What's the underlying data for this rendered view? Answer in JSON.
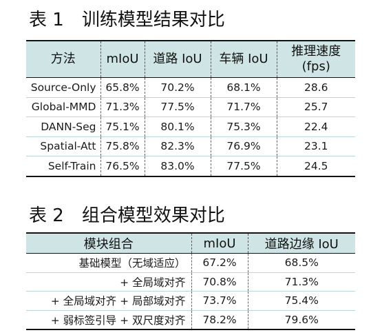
{
  "table1": {
    "title_num": "表 1",
    "title_text": "训练模型结果对比",
    "headers": [
      "方法",
      "mIoU",
      "道路 IoU",
      "车辆 IoU",
      "推理速度",
      "(fps)"
    ],
    "rows": [
      [
        "Source-Only",
        "65.8%",
        "70.2%",
        "68.1%",
        "28.6"
      ],
      [
        "Global-MMD",
        "71.3%",
        "77.5%",
        "71.7%",
        "25.7"
      ],
      [
        "DANN-Seg",
        "75.1%",
        "80.1%",
        "75.3%",
        "22.4"
      ],
      [
        "Spatial-Att",
        "75.8%",
        "82.3%",
        "76.9%",
        "23.1"
      ],
      [
        "Self-Train",
        "76.5%",
        "83.0%",
        "77.5%",
        "24.5"
      ]
    ]
  },
  "table2": {
    "title_num": "表 2",
    "title_text": "组合模型效果对比",
    "headers": [
      "模块组合",
      "mIoU",
      "道路边缘 IoU"
    ],
    "rows": [
      [
        "基础模型（无域适应）",
        "67.2%",
        "68.5%"
      ],
      [
        "+ 全局域对齐",
        "70.8%",
        "71.3%"
      ],
      [
        "+ 全局域对齐 + 局部域对齐",
        "73.7%",
        "75.4%"
      ],
      [
        "+ 弱标签引导 + 双尺度对齐",
        "78.2%",
        "79.6%"
      ]
    ]
  }
}
